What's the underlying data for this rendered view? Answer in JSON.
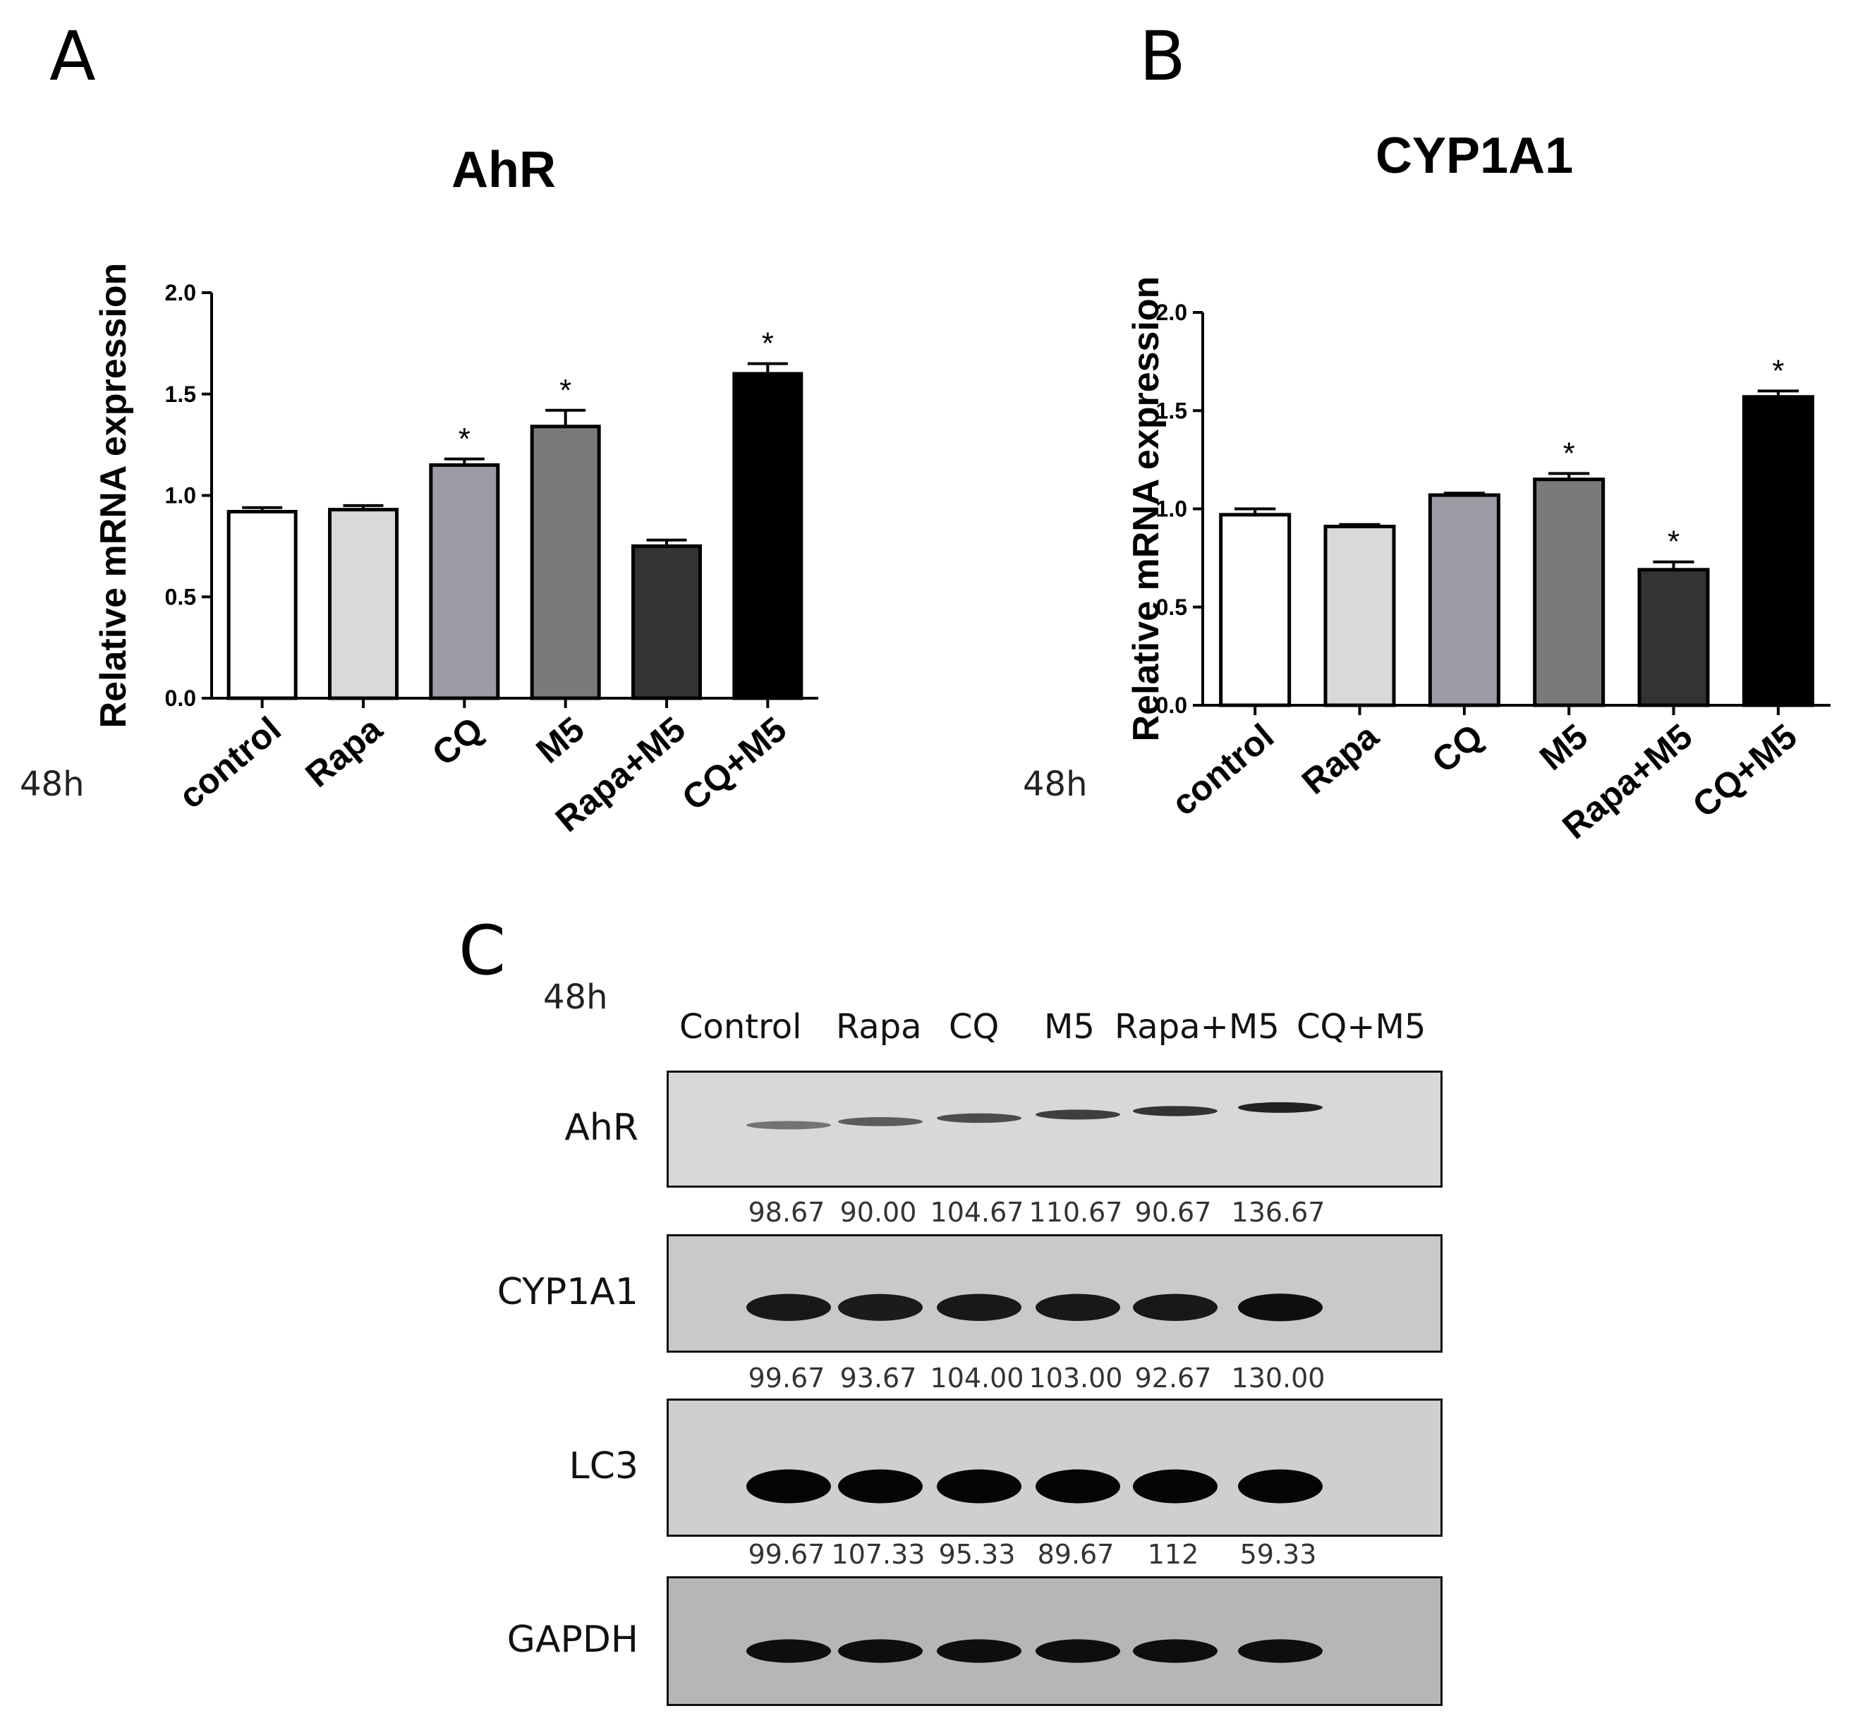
{
  "panels": {
    "a": {
      "letter": "A",
      "time": "48h"
    },
    "b": {
      "letter": "B",
      "time": "48h"
    },
    "c": {
      "letter": "C",
      "time": "48h"
    }
  },
  "chart_data": [
    {
      "type": "bar",
      "title": "AhR",
      "xlabel": "",
      "ylabel": "Relative mRNA expression",
      "ylim": [
        0,
        2.0
      ],
      "yticks": [
        "0.0",
        "0.5",
        "1.0",
        "1.5",
        "2.0"
      ],
      "categories": [
        "control",
        "Rapa",
        "CQ",
        "M5",
        "Rapa+M5",
        "CQ+M5"
      ],
      "values": [
        0.92,
        0.93,
        1.15,
        1.34,
        0.75,
        1.6
      ],
      "errors": [
        0.02,
        0.02,
        0.03,
        0.08,
        0.03,
        0.05
      ],
      "significance": [
        "",
        "",
        "*",
        "*",
        "",
        "*"
      ],
      "colors": [
        "#ffffff",
        "#d9d9d9",
        "#9b9ba3",
        "#7a7a7a",
        "#333333",
        "#000000"
      ],
      "grid": false
    },
    {
      "type": "bar",
      "title": "CYP1A1",
      "xlabel": "",
      "ylabel": "Relative mRNA expression",
      "ylim": [
        0,
        2.0
      ],
      "yticks": [
        "0.0",
        "0.5",
        "1.0",
        "1.5",
        "2.0"
      ],
      "categories": [
        "control",
        "Rapa",
        "CQ",
        "M5",
        "Rapa+M5",
        "CQ+M5"
      ],
      "values": [
        0.97,
        0.91,
        1.07,
        1.15,
        0.69,
        1.57
      ],
      "errors": [
        0.03,
        0.01,
        0.01,
        0.03,
        0.04,
        0.03
      ],
      "significance": [
        "",
        "",
        "",
        "*",
        "*",
        "*"
      ],
      "colors": [
        "#ffffff",
        "#d9d9d9",
        "#9b9ba3",
        "#7a7a7a",
        "#333333",
        "#000000"
      ],
      "grid": false
    }
  ],
  "blot": {
    "lanes": [
      "Control",
      "Rapa",
      "CQ",
      "M5",
      "Rapa+M5",
      "CQ+M5"
    ],
    "rows": [
      {
        "label": "AhR",
        "quant": [
          "98.67",
          "90.00",
          "104.67",
          "110.67",
          "90.67",
          "136.67"
        ],
        "intensity": [
          0.35,
          0.5,
          0.6,
          0.68,
          0.75,
          0.85
        ]
      },
      {
        "label": "CYP1A1",
        "quant": [
          "99.67",
          "93.67",
          "104.00",
          "103.00",
          "92.67",
          "130.00"
        ],
        "intensity": [
          0.9,
          0.88,
          0.9,
          0.9,
          0.9,
          0.95
        ]
      },
      {
        "label": "LC3",
        "quant": [
          "99.67",
          "107.33",
          "95.33",
          "89.67",
          "112",
          "59.33"
        ],
        "intensity": [
          1,
          1,
          1,
          1,
          1,
          1
        ]
      },
      {
        "label": "GAPDH",
        "quant": [],
        "intensity": [
          0.95,
          0.95,
          0.95,
          0.95,
          0.95,
          0.95
        ]
      }
    ]
  }
}
